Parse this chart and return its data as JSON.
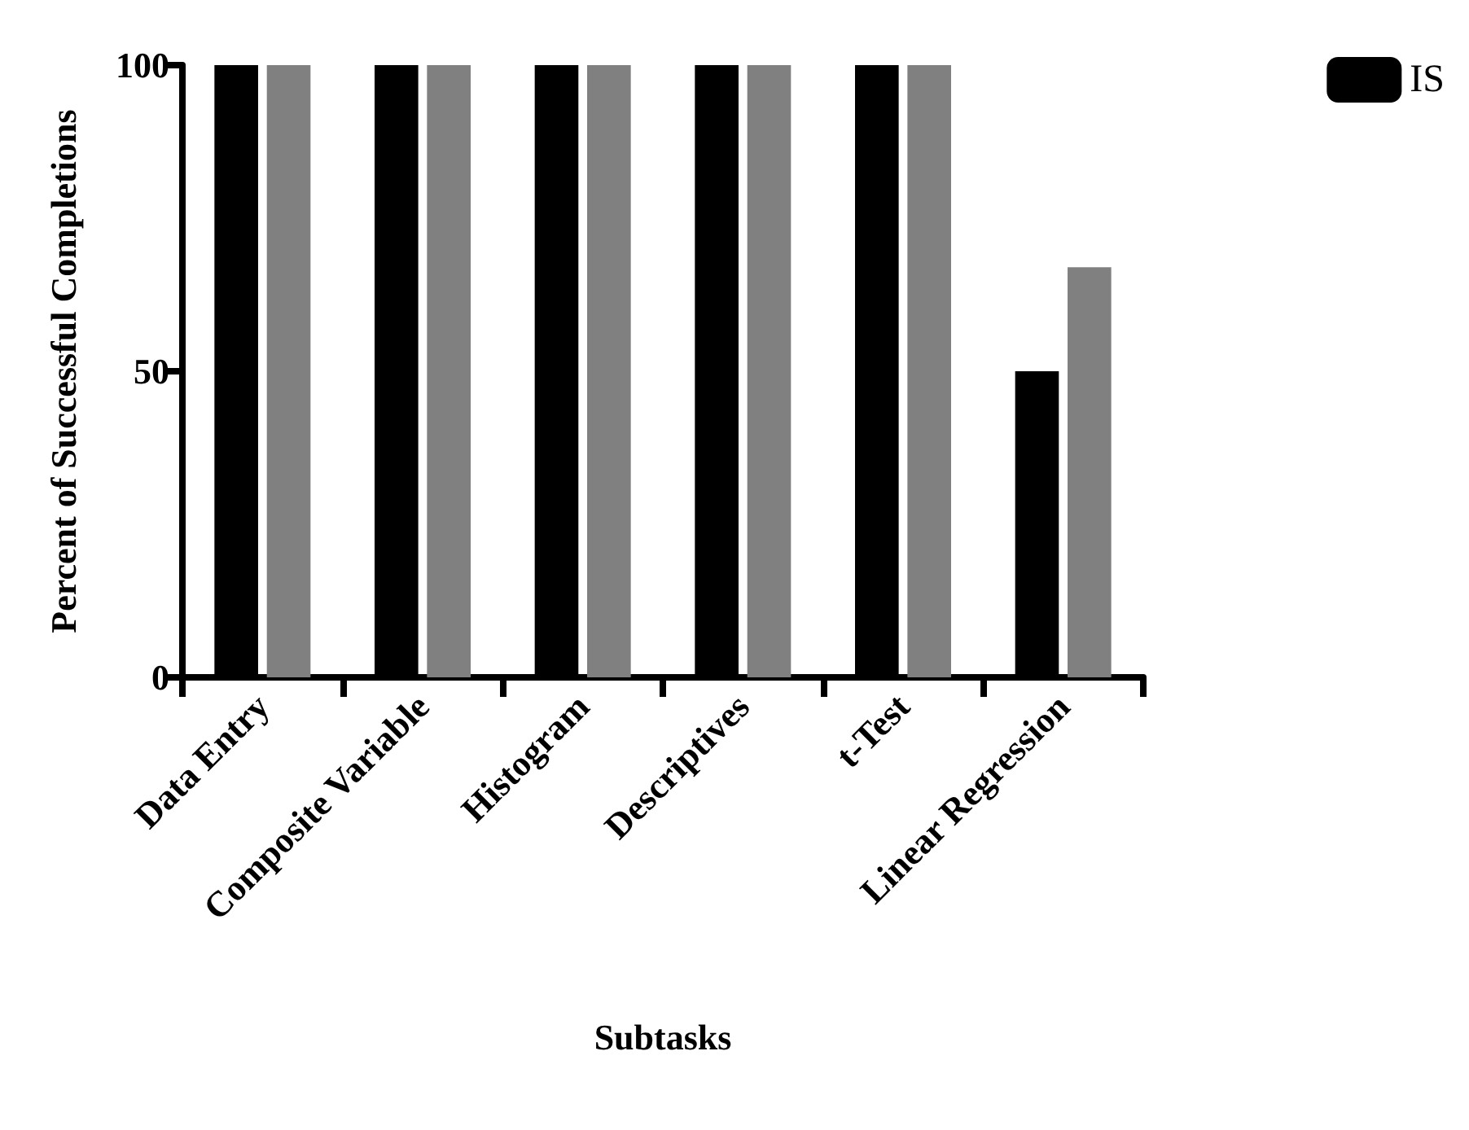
{
  "chart_data": {
    "type": "bar",
    "xlabel": "Subtasks",
    "ylabel": "Percent of Successful Completions",
    "categories": [
      "Data Entry",
      "Composite Variable",
      "Histogram",
      "Descriptives",
      "t-Test",
      "Linear Regression"
    ],
    "series": [
      {
        "name": "IS",
        "color": "#000000",
        "values": [
          100,
          100,
          100,
          100,
          100,
          50
        ]
      },
      {
        "color": "#808080",
        "values": [
          100,
          100,
          100,
          100,
          100,
          67
        ]
      }
    ],
    "ylim": [
      0,
      100
    ],
    "yticks": [
      0,
      50,
      100
    ],
    "grid": false,
    "legend": "top right"
  }
}
